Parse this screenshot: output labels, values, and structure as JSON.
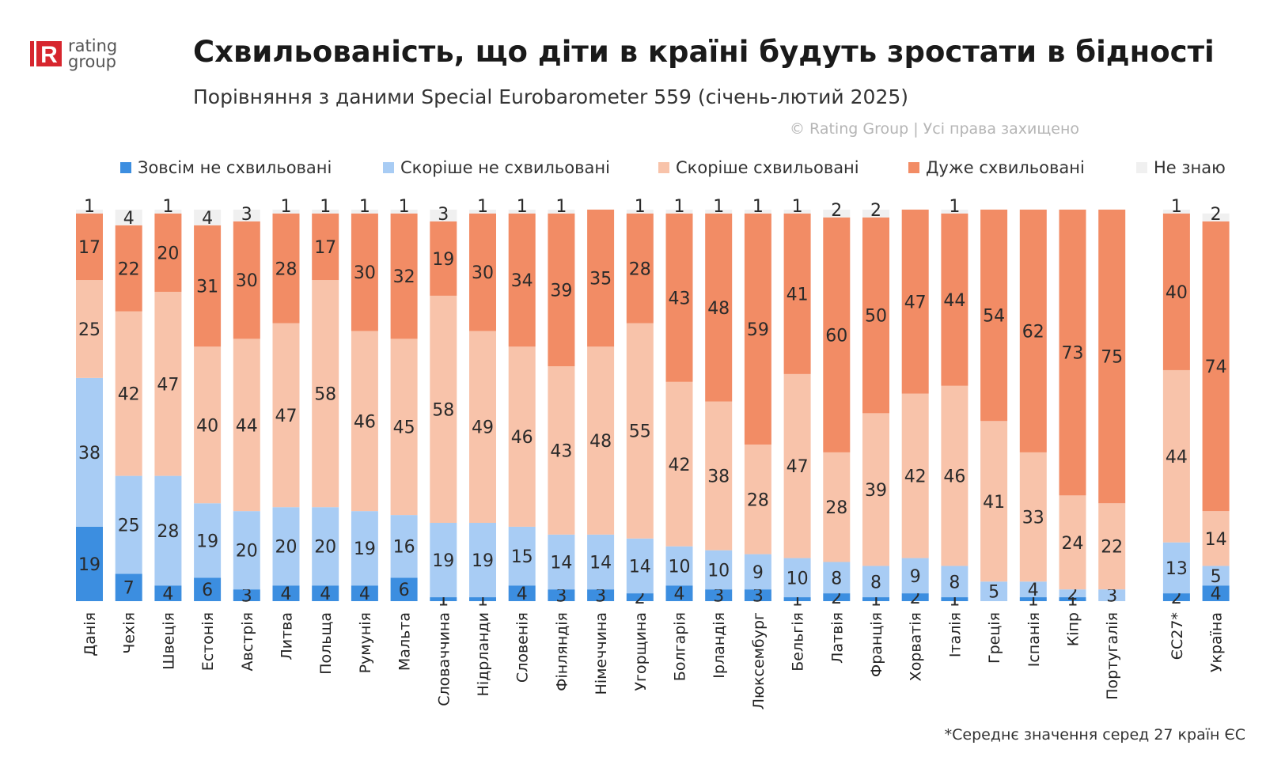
{
  "header": {
    "logo_line1": "rating",
    "logo_line2": "group",
    "title": "Схвильованість, що діти в країні будуть зростати в бідності",
    "subtitle": "Порівняння з даними Special Eurobarometer 559 (січень-лютий 2025)",
    "copyright": "© Rating Group | Усі права захищено"
  },
  "footnote": "*Середнє значення серед 27 країн ЄС",
  "colors": {
    "brand_red": "#d7262e",
    "not_at_all": "#3c8ee0",
    "rather_not": "#a8ccf4",
    "rather_worried": "#f8c3aa",
    "very_worried": "#f28c65",
    "dont_know": "#f0f0f0"
  },
  "chart_data": {
    "type": "bar",
    "stacked": true,
    "orientation": "vertical",
    "legend_position": "top",
    "ylim": [
      0,
      100
    ],
    "grid": false,
    "categories": [
      "Данія",
      "Чехія",
      "Швеція",
      "Естонія",
      "Австрія",
      "Литва",
      "Польща",
      "Румунія",
      "Мальта",
      "Словаччина",
      "Нідрланди",
      "Словенія",
      "Фінляндія",
      "Німеччина",
      "Угорщина",
      "Болгарія",
      "Ірландія",
      "Люксембург",
      "Бельгія",
      "Латвія",
      "Франція",
      "Хорватія",
      "Італія",
      "Греція",
      "Іспанія",
      "Кіпр",
      "Португалія",
      "ЄС27*",
      "Україна"
    ],
    "series": [
      {
        "name": "Зовсім не схвильовані",
        "values": [
          19,
          7,
          4,
          6,
          3,
          4,
          4,
          4,
          6,
          1,
          1,
          4,
          3,
          3,
          2,
          4,
          3,
          3,
          1,
          2,
          1,
          2,
          1,
          0,
          1,
          1,
          0,
          2,
          4
        ]
      },
      {
        "name": "Скоріше не схвильовані",
        "values": [
          38,
          25,
          28,
          19,
          20,
          20,
          20,
          19,
          16,
          19,
          19,
          15,
          14,
          14,
          14,
          10,
          10,
          9,
          10,
          8,
          8,
          9,
          8,
          5,
          4,
          2,
          3,
          13,
          5
        ]
      },
      {
        "name": "Скоріше схвильовані",
        "values": [
          25,
          42,
          47,
          40,
          44,
          47,
          58,
          46,
          45,
          58,
          49,
          46,
          43,
          48,
          55,
          42,
          38,
          28,
          47,
          28,
          39,
          42,
          46,
          41,
          33,
          24,
          22,
          44,
          14
        ]
      },
      {
        "name": "Дуже схвильовані",
        "values": [
          17,
          22,
          20,
          31,
          30,
          28,
          17,
          30,
          32,
          19,
          30,
          34,
          39,
          35,
          28,
          43,
          48,
          59,
          41,
          60,
          50,
          47,
          44,
          54,
          62,
          73,
          75,
          40,
          74
        ]
      },
      {
        "name": "Не знаю",
        "values": [
          1,
          4,
          1,
          4,
          3,
          1,
          1,
          1,
          1,
          3,
          1,
          1,
          1,
          0,
          1,
          1,
          1,
          1,
          1,
          2,
          2,
          0,
          1,
          0,
          0,
          0,
          0,
          1,
          2
        ]
      }
    ]
  }
}
